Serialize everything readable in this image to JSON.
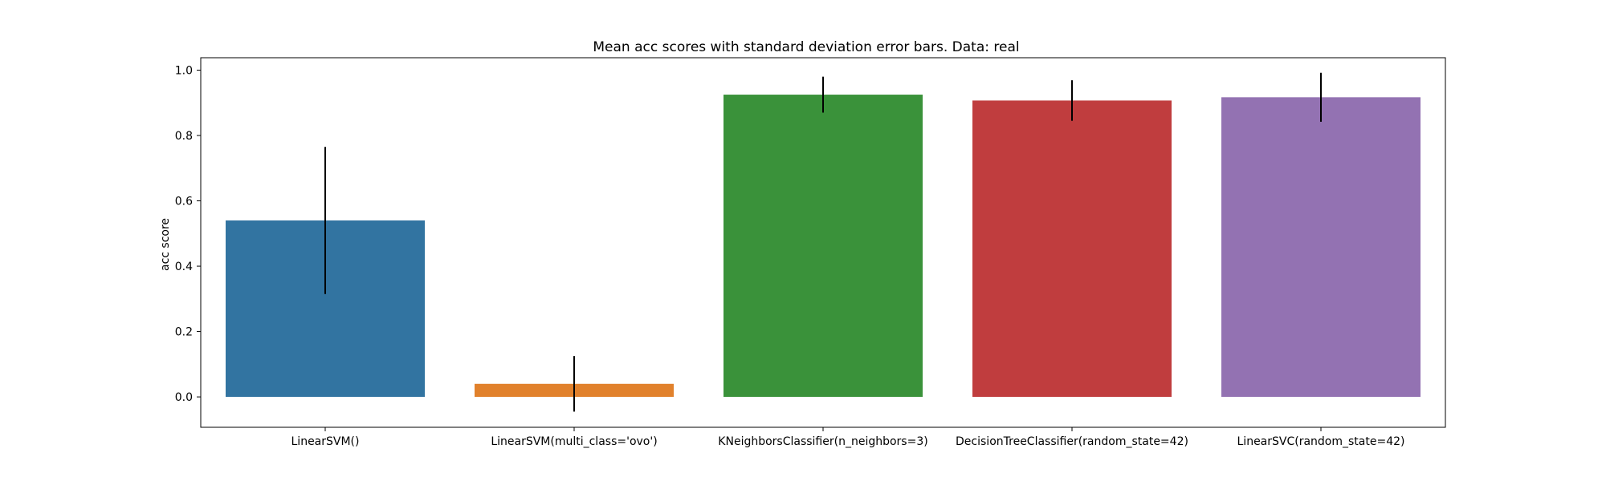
{
  "chart_data": {
    "type": "bar",
    "title": "Mean acc scores with standard deviation error bars. Data: real",
    "xlabel": "",
    "ylabel": "acc score",
    "categories": [
      "LinearSVM()",
      "LinearSVM(multi_class='ovo')",
      "KNeighborsClassifier(n_neighbors=3)",
      "DecisionTreeClassifier(random_state=42)",
      "LinearSVC(random_state=42)"
    ],
    "values": [
      0.54,
      0.04,
      0.925,
      0.907,
      0.917
    ],
    "error": [
      0.225,
      0.085,
      0.055,
      0.062,
      0.075
    ],
    "colors": [
      "#3274a1",
      "#e1812c",
      "#3a923a",
      "#c03d3e",
      "#9372b2"
    ],
    "ylim": [
      -0.093,
      1.038
    ],
    "yticks": [
      0.0,
      0.2,
      0.4,
      0.6,
      0.8,
      1.0
    ],
    "ytick_labels": [
      "0.0",
      "0.2",
      "0.4",
      "0.6",
      "0.8",
      "1.0"
    ],
    "grid": false,
    "legend": "none"
  }
}
